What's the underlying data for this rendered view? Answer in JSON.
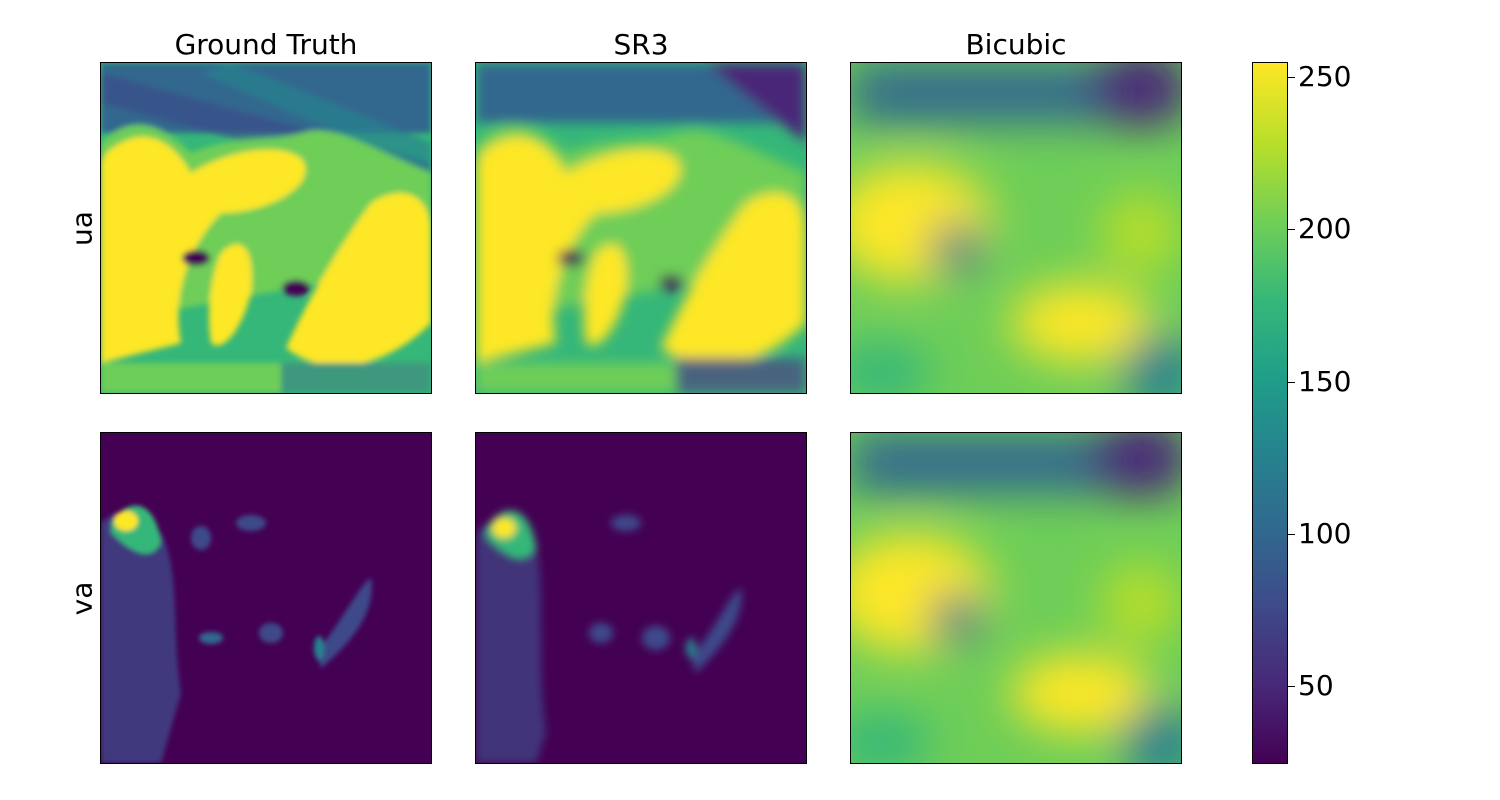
{
  "chart_data": {
    "type": "heatmap",
    "columns": [
      "Ground Truth",
      "SR3",
      "Bicubic"
    ],
    "rows": [
      "ua",
      "va"
    ],
    "colormap": "viridis",
    "colorbar": {
      "min": 25,
      "max": 255,
      "ticks": [
        50,
        100,
        150,
        200,
        250
      ],
      "tick_labels": [
        "50",
        "100",
        "150",
        "200",
        "250"
      ]
    },
    "panel_summary": {
      "ua": {
        "Ground Truth": "mostly high values (yellow/green) with darker blue streaks at top",
        "SR3": "smoothed version of ground truth, high values (yellow/green)",
        "Bicubic": "very blurred field, values ~80-250"
      },
      "va": {
        "Ground Truth": "mostly low values (~30) with sparse green/yellow streaks on left",
        "SR3": "mostly low values with sparse green streaks",
        "Bicubic": "very blurred field, values ~80-250"
      }
    }
  },
  "colors": {
    "c0": "#440154",
    "c1": "#482878",
    "c2": "#3e4989",
    "c3": "#31688e",
    "c4": "#26828e",
    "c5": "#1f9e89",
    "c6": "#35b779",
    "c7": "#6ece58",
    "c8": "#b5de2b",
    "c9": "#fde725"
  }
}
